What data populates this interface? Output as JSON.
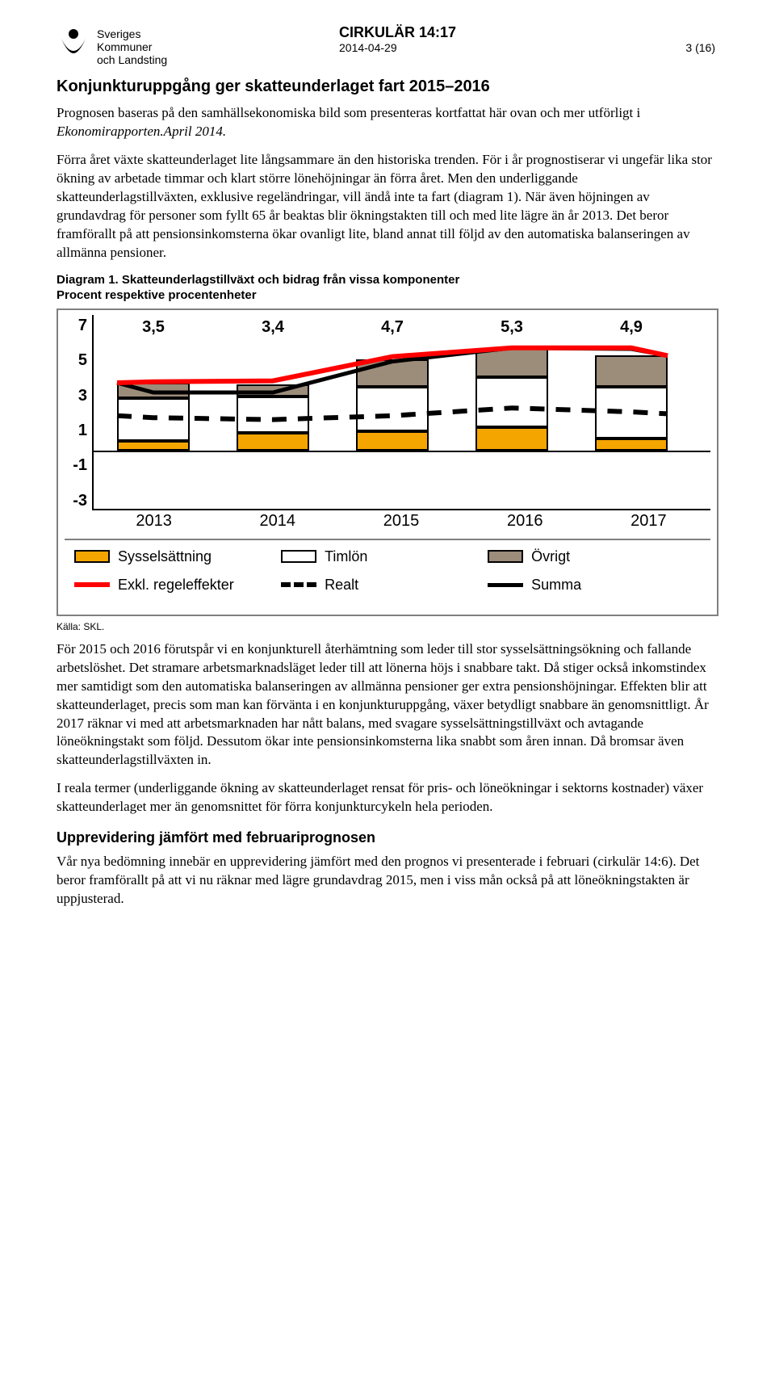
{
  "header": {
    "org_line1": "Sveriges",
    "org_line2": "Kommuner",
    "org_line3": "och Landsting",
    "doc_id": "CIRKULÄR 14:17",
    "date": "2014-04-29",
    "page": "3 (16)"
  },
  "section1_title": "Konjunkturuppgång ger skatteunderlaget fart 2015–2016",
  "para1a": "Prognosen baseras på den samhällsekonomiska bild som presenteras kortfattat här ovan och mer utförligt i ",
  "para1b_italic": "Ekonomirapporten.April 2014.",
  "para2": "Förra året växte skatteunderlaget lite långsammare än den historiska trenden. För i år prognostiserar vi ungefär lika stor ökning av arbetade timmar och klart större lönehöjningar än förra året. Men den underliggande skatteunderlagstillväxten, exklusive regeländringar, vill ändå inte ta fart (diagram 1). När även höjningen av grundavdrag för personer som fyllt 65 år beaktas blir ökningstakten till och med lite lägre än år 2013. Det beror framförallt på att pensionsinkomsterna ökar ovanligt lite, bland annat till följd av den automatiska balanseringen av allmänna pensioner.",
  "diagram_caption_line1": "Diagram 1. Skatteunderlagstillväxt och bidrag från vissa komponenter",
  "diagram_caption_line2": "Procent respektive procentenheter",
  "chart": {
    "y_ticks": [
      "7",
      "5",
      "3",
      "1",
      "-1",
      "-3"
    ],
    "y_min": -3,
    "y_max": 7,
    "categories": [
      "2013",
      "2014",
      "2015",
      "2016",
      "2017"
    ],
    "bar_labels": [
      "3,5",
      "3,4",
      "4,7",
      "5,3",
      "4,9"
    ],
    "series": {
      "syssel": [
        0.5,
        0.9,
        1.0,
        1.2,
        0.6
      ],
      "timlon": [
        2.2,
        1.9,
        2.3,
        2.6,
        2.7
      ],
      "ovrigt": [
        0.8,
        0.6,
        1.4,
        1.5,
        1.6
      ]
    },
    "lines": {
      "exkl": [
        3.5,
        3.55,
        3.6,
        4.85,
        5.3,
        5.3,
        4.9
      ],
      "realt": [
        1.8,
        1.7,
        1.6,
        1.8,
        2.2,
        2.0,
        1.9
      ],
      "summa": [
        3.5,
        3.0,
        3.0,
        4.6,
        5.3,
        5.25,
        4.9
      ]
    },
    "colors": {
      "syssel": "#f5a500",
      "timlon": "#ffffff",
      "ovrigt": "#9c8c7a",
      "exkl": "#ff0000",
      "realt": "#000000",
      "summa": "#000000",
      "axis": "#000000",
      "border": "#808080"
    },
    "legend": {
      "syssel": "Sysselsättning",
      "timlon": "Timlön",
      "ovrigt": "Övrigt",
      "exkl": "Exkl. regeleffekter",
      "realt": "Realt",
      "summa": "Summa"
    }
  },
  "source": "Källa: SKL.",
  "para3": "För 2015 och 2016 förutspår vi en konjunkturell återhämtning som leder till stor sysselsättningsökning och fallande arbetslöshet. Det stramare arbetsmarknadsläget leder till att lönerna höjs i snabbare takt. Då stiger också inkomstindex mer samtidigt som den automatiska balanseringen av allmänna pensioner ger extra pensionshöjningar. Effekten blir att skatteunderlaget, precis som man kan förvänta i en konjunkturuppgång, växer betydligt snabbare än genomsnittligt. År 2017 räknar vi med att arbetsmarknaden har nått balans, med svagare sysselsättningstillväxt och avtagande löneökningstakt som följd. Dessutom ökar inte pensionsinkomsterna lika snabbt som åren innan. Då bromsar även skatteunderlagstillväxten in.",
  "para4": "I reala termer (underliggande ökning av skatteunderlaget rensat för pris- och löneökningar i sektorns kostnader) växer skatteunderlaget mer än genomsnittet för förra konjunkturcykeln hela perioden.",
  "section2_title": "Upprevidering jämfört med februariprognosen",
  "para5": "Vår nya bedömning innebär en upprevidering jämfört med den prognos vi presenterade i februari (cirkulär 14:6). Det beror framförallt på att vi nu räknar med lägre grundavdrag 2015, men i viss mån också på att löneökningstakten är uppjusterad."
}
